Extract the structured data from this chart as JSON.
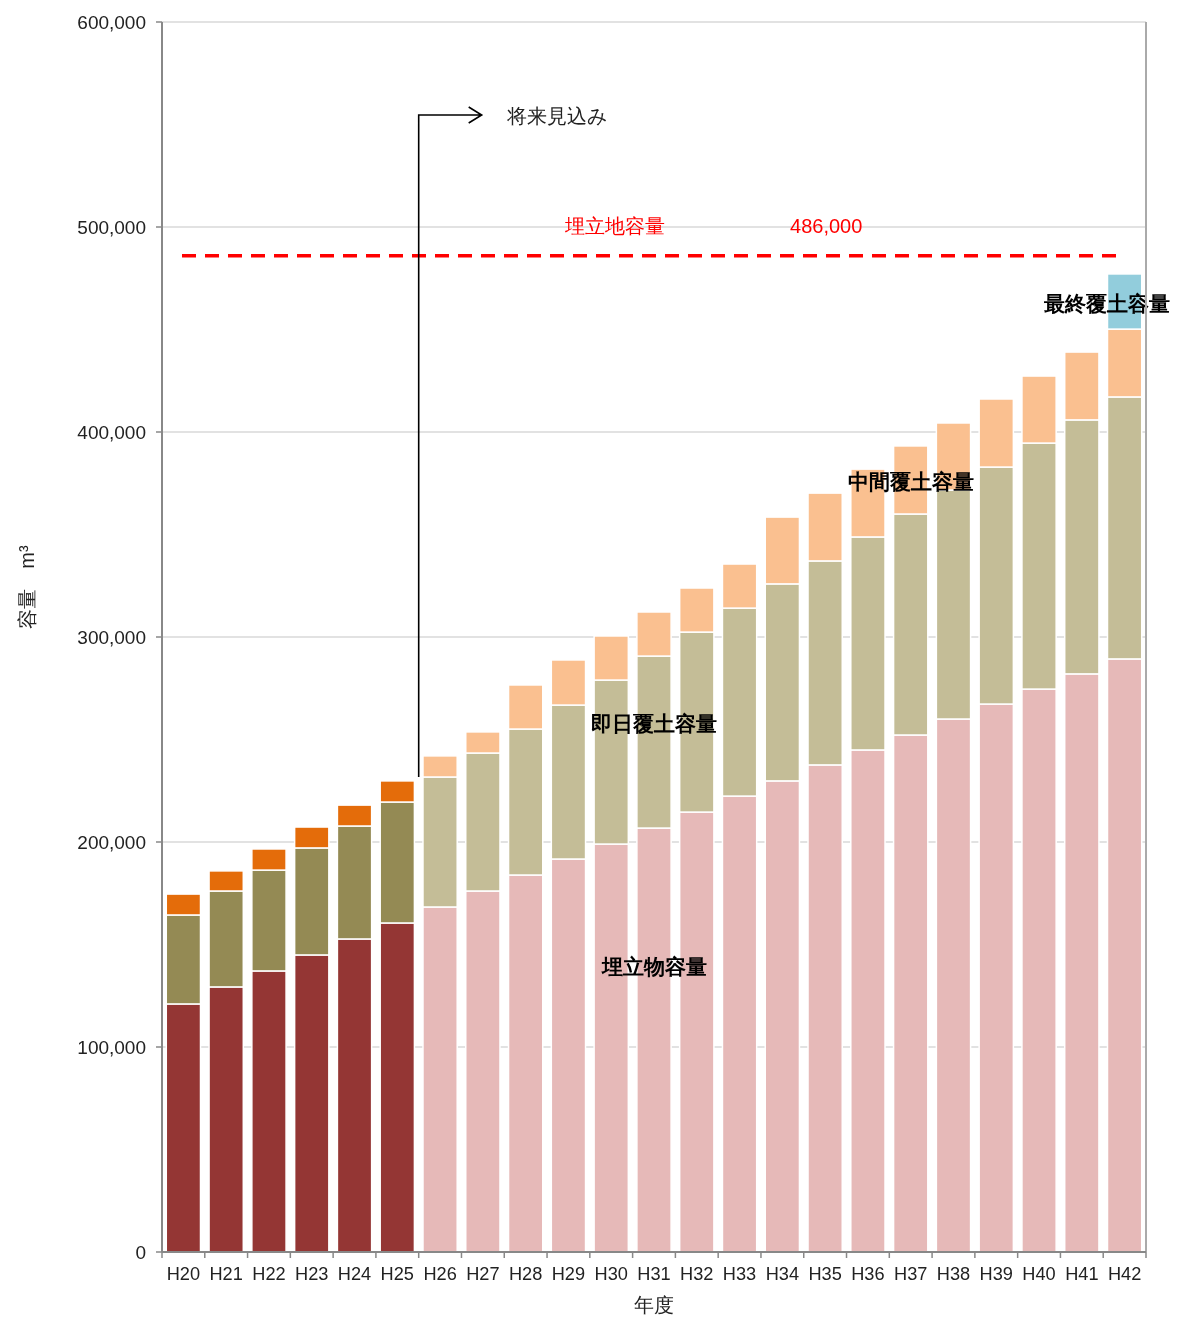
{
  "chart_data": {
    "type": "bar",
    "stacked": true,
    "xlabel": "年度",
    "ylabel": "容量　m³",
    "categories": [
      "H20",
      "H21",
      "H22",
      "H23",
      "H24",
      "H25",
      "H26",
      "H27",
      "H28",
      "H29",
      "H30",
      "H31",
      "H32",
      "H33",
      "H34",
      "H35",
      "H36",
      "H37",
      "H38",
      "H39",
      "H40",
      "H41",
      "H42"
    ],
    "series": [
      {
        "name": "埋立物容量",
        "colors": [
          "#943634",
          "#943634",
          "#943634",
          "#943634",
          "#943634",
          "#943634",
          "#e6b9b8",
          "#e6b9b8",
          "#e6b9b8",
          "#e6b9b8",
          "#e6b9b8",
          "#e6b9b8",
          "#e6b9b8",
          "#e6b9b8",
          "#e6b9b8",
          "#e6b9b8",
          "#e6b9b8",
          "#e6b9b8",
          "#e6b9b8",
          "#e6b9b8",
          "#e6b9b8",
          "#e6b9b8",
          "#e6b9b8"
        ],
        "values": [
          121000,
          129300,
          137100,
          144900,
          152700,
          160500,
          168300,
          176100,
          183900,
          191700,
          199000,
          206800,
          214600,
          222400,
          229800,
          237600,
          244900,
          252200,
          260000,
          267300,
          274600,
          282000,
          289300
        ]
      },
      {
        "name": "即日覆土容量",
        "colors": [
          "#948a54",
          "#948a54",
          "#948a54",
          "#948a54",
          "#948a54",
          "#948a54",
          "#c4bd97",
          "#c4bd97",
          "#c4bd97",
          "#c4bd97",
          "#c4bd97",
          "#c4bd97",
          "#c4bd97",
          "#c4bd97",
          "#c4bd97",
          "#c4bd97",
          "#c4bd97",
          "#c4bd97",
          "#c4bd97",
          "#c4bd97",
          "#c4bd97",
          "#c4bd97",
          "#c4bd97"
        ],
        "values": [
          43400,
          46800,
          49200,
          52200,
          55100,
          59000,
          63400,
          67300,
          71200,
          75100,
          80000,
          83900,
          87800,
          91700,
          96100,
          99500,
          103900,
          107800,
          111700,
          115600,
          120000,
          123900,
          127800
        ]
      },
      {
        "name": "中間覆土容量",
        "colors": [
          "#e46c0a",
          "#e46c0a",
          "#e46c0a",
          "#e46c0a",
          "#e46c0a",
          "#e46c0a",
          "#fac090",
          "#fac090",
          "#fac090",
          "#fac090",
          "#fac090",
          "#fac090",
          "#fac090",
          "#fac090",
          "#fac090",
          "#fac090",
          "#fac090",
          "#fac090",
          "#fac090",
          "#fac090",
          "#fac090",
          "#fac090",
          "#fac090"
        ],
        "values": [
          10200,
          9800,
          10300,
          10200,
          10200,
          10300,
          10300,
          10300,
          21500,
          22000,
          21500,
          21500,
          21500,
          21500,
          32600,
          33100,
          33100,
          33200,
          32700,
          33200,
          32700,
          33100,
          33100
        ]
      },
      {
        "name": "最終覆土容量",
        "color": "#92cddc",
        "values": [
          null,
          null,
          null,
          null,
          null,
          null,
          null,
          null,
          null,
          null,
          null,
          null,
          null,
          null,
          null,
          null,
          null,
          null,
          null,
          null,
          null,
          null,
          26900
        ]
      }
    ],
    "ylim": [
      0,
      600000
    ],
    "yticks": [
      0,
      {
        "value": 100000,
        "label": "100,000"
      },
      {
        "value": 200000,
        "label": "200,000"
      },
      {
        "value": 300000,
        "label": "300,000"
      },
      {
        "value": 400000,
        "label": "400,000"
      },
      {
        "value": 500000,
        "label": "500,000"
      },
      {
        "value": 600000,
        "label": "600,000"
      }
    ],
    "grid": "y",
    "ref_lines": [
      {
        "axis": "y",
        "value": 486000,
        "label": "埋立地容量",
        "color": "#ff0000",
        "line_style": "dashed"
      }
    ],
    "annotations": [
      "将来見込み",
      "486,000"
    ]
  }
}
